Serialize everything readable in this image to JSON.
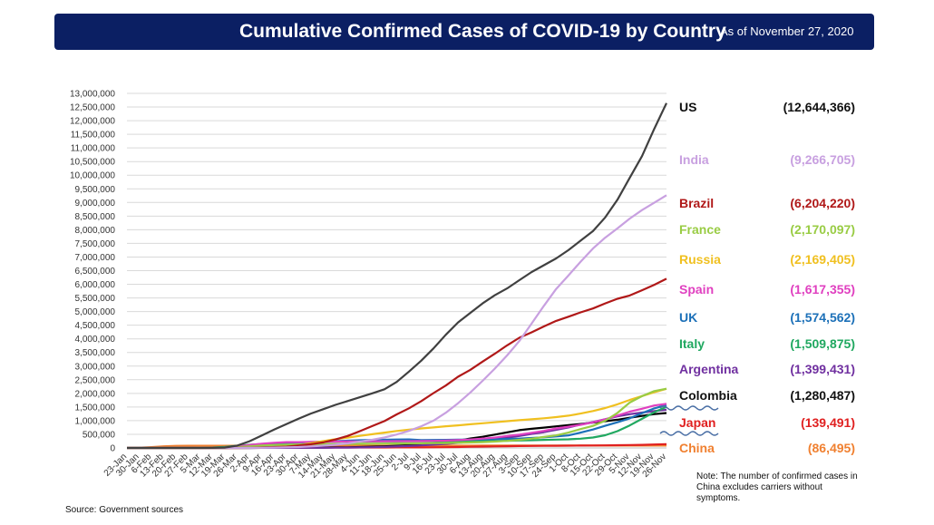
{
  "header": {
    "title": "Cumulative Confirmed Cases of COVID-19 by Country",
    "as_of": "As of November 27, 2020"
  },
  "note": "Note: The number of confirmed cases in China excludes carriers without symptoms.",
  "source": "Source: Government sources",
  "chart_data": {
    "type": "line",
    "title": "Cumulative Confirmed Cases of COVID-19 by Country",
    "ylim": [
      0,
      13000000
    ],
    "y_ticks": [
      0,
      500000,
      1000000,
      1500000,
      2000000,
      2500000,
      3000000,
      3500000,
      4000000,
      4500000,
      5000000,
      5500000,
      6000000,
      6500000,
      7000000,
      7500000,
      8000000,
      8500000,
      9000000,
      9500000,
      10000000,
      10500000,
      11000000,
      11500000,
      12000000,
      12500000,
      13000000
    ],
    "y_tick_labels": [
      "0",
      "500,000",
      "1,000,000",
      "1,500,000",
      "2,000,000",
      "2,500,000",
      "3,000,000",
      "3,500,000",
      "4,000,000",
      "4,500,000",
      "5,000,000",
      "5,500,000",
      "6,000,000",
      "6,500,000",
      "7,000,000",
      "7,500,000",
      "8,000,000",
      "8,500,000",
      "9,000,000",
      "9,500,000",
      "10,000,000",
      "10,500,000",
      "11,000,000",
      "11,500,000",
      "12,000,000",
      "12,500,000",
      "13,000,000"
    ],
    "categories": [
      "23-Jan",
      "30-Jan",
      "6-Feb",
      "13-Feb",
      "20-Feb",
      "27-Feb",
      "5-Mar",
      "12-Mar",
      "19-Mar",
      "26-Mar",
      "2-Apr",
      "9-Apr",
      "16-Apr",
      "23-Apr",
      "30-Apr",
      "7-May",
      "14-May",
      "21-May",
      "28-May",
      "4-Jun",
      "11-Jun",
      "18-Jun",
      "25-Jun",
      "2-Jul",
      "9-Jul",
      "16-Jul",
      "23-Jul",
      "30-Jul",
      "6-Aug",
      "13-Aug",
      "20-Aug",
      "27-Aug",
      "3-Sep",
      "10-Sep",
      "17-Sep",
      "24-Sep",
      "1-Oct",
      "8-Oct",
      "15-Oct",
      "22-Oct",
      "29-Oct",
      "5-Nov",
      "12-Nov",
      "19-Nov",
      "26-Nov"
    ],
    "grid": true,
    "legend": "right",
    "series": [
      {
        "name": "US",
        "value_label": "(12,644,366)",
        "color": "#404040",
        "values": [
          1,
          6,
          12,
          15,
          15,
          60,
          250,
          1700,
          14000,
          86000,
          245000,
          460000,
          670000,
          870000,
          1070000,
          1260000,
          1420000,
          1580000,
          1720000,
          1860000,
          2000000,
          2150000,
          2420000,
          2800000,
          3200000,
          3650000,
          4150000,
          4600000,
          4950000,
          5300000,
          5600000,
          5850000,
          6150000,
          6450000,
          6700000,
          6950000,
          7250000,
          7600000,
          7950000,
          8450000,
          9100000,
          9900000,
          10700000,
          11700000,
          12644366
        ]
      },
      {
        "name": "India",
        "value_label": "(9,266,705)",
        "color": "#c8a0e0",
        "values": [
          0,
          1,
          3,
          3,
          3,
          3,
          30,
          75,
          200,
          700,
          2500,
          6800,
          13000,
          23000,
          34000,
          56000,
          82000,
          118000,
          166000,
          236000,
          298000,
          381000,
          491000,
          626000,
          794000,
          1000000,
          1290000,
          1640000,
          2030000,
          2460000,
          2910000,
          3390000,
          3920000,
          4560000,
          5210000,
          5830000,
          6320000,
          6830000,
          7310000,
          7710000,
          8050000,
          8410000,
          8720000,
          8990000,
          9266705
        ]
      },
      {
        "name": "Brazil",
        "value_label": "(6,204,220)",
        "color": "#b01818",
        "values": [
          0,
          0,
          0,
          0,
          0,
          1,
          8,
          77,
          621,
          2900,
          8000,
          17000,
          30000,
          45000,
          85000,
          135000,
          202000,
          310000,
          438000,
          614000,
          802000,
          983000,
          1229000,
          1453000,
          1716000,
          2012000,
          2287000,
          2611000,
          2862000,
          3164000,
          3456000,
          3762000,
          4041000,
          4238000,
          4455000,
          4657000,
          4810000,
          4970000,
          5113000,
          5300000,
          5469000,
          5590000,
          5781000,
          5981000,
          6204220
        ]
      },
      {
        "name": "France",
        "value_label": "(2,170,097)",
        "color": "#99cc44",
        "values": [
          0,
          5,
          6,
          11,
          12,
          38,
          423,
          2876,
          10995,
          29155,
          59105,
          86334,
          106206,
          120804,
          128442,
          137150,
          140227,
          143845,
          145555,
          151753,
          155136,
          158174,
          162936,
          166960,
          170752,
          174674,
          180528,
          187919,
          197921,
          212211,
          232555,
          259698,
          295000,
          344000,
          401000,
          458000,
          563000,
          691000,
          809000,
          999000,
          1282000,
          1661000,
          1898000,
          2086000,
          2170097
        ]
      },
      {
        "name": "Russia",
        "value_label": "(2,169,405)",
        "color": "#f0c020",
        "values": [
          0,
          0,
          2,
          2,
          2,
          2,
          4,
          28,
          199,
          840,
          3548,
          10131,
          27938,
          62773,
          106498,
          177160,
          252245,
          317554,
          379051,
          441108,
          502436,
          560321,
          620794,
          667883,
          713936,
          752797,
          795038,
          828990,
          866627,
          902701,
          942106,
          980405,
          1017131,
          1051874,
          1086955,
          1128836,
          1185231,
          1260112,
          1354163,
          1463306,
          1599976,
          1760420,
          1902348,
          2039926,
          2169405
        ]
      },
      {
        "name": "Spain",
        "value_label": "(1,617,355)",
        "color": "#e040c0",
        "values": [
          0,
          0,
          1,
          2,
          2,
          25,
          282,
          3004,
          17147,
          56188,
          110238,
          153222,
          184948,
          213024,
          213435,
          221447,
          228691,
          233037,
          237906,
          240660,
          243209,
          245575,
          248770,
          250103,
          253056,
          258855,
          270166,
          285430,
          309855,
          342813,
          377906,
          439286,
          488513,
          554143,
          625651,
          716481,
          778607,
          848324,
          937311,
          1046132,
          1185678,
          1328832,
          1437220,
          1556730,
          1617355
        ]
      },
      {
        "name": "UK",
        "value_label": "(1,574,562)",
        "color": "#1c70b8",
        "values": [
          0,
          0,
          2,
          9,
          9,
          15,
          116,
          590,
          3269,
          11658,
          33718,
          65077,
          103093,
          138078,
          171253,
          206715,
          233151,
          250908,
          267240,
          281661,
          291409,
          300469,
          307980,
          313483,
          287621,
          293239,
          297146,
          302301,
          308134,
          313798,
          322280,
          330368,
          342351,
          365174,
          390358,
          423236,
          460178,
          561815,
          673622,
          810467,
          942275,
          1084000,
          1274000,
          1450000,
          1574562
        ]
      },
      {
        "name": "Italy",
        "value_label": "(1,509,875)",
        "color": "#20a860",
        "values": [
          0,
          0,
          2,
          3,
          3,
          650,
          3858,
          15113,
          41035,
          80539,
          115242,
          143626,
          168941,
          189973,
          205463,
          215858,
          223096,
          228006,
          231732,
          234013,
          235561,
          238159,
          240136,
          241419,
          242639,
          243736,
          245338,
          247158,
          248803,
          251713,
          256118,
          263949,
          272912,
          283180,
          294932,
          306235,
          317409,
          338398,
          381602,
          465726,
          616595,
          824879,
          1066401,
          1308528,
          1509875
        ]
      },
      {
        "name": "Argentina",
        "value_label": "(1,399,431)",
        "color": "#7030a0",
        "values": [
          0,
          0,
          0,
          0,
          0,
          0,
          1,
          31,
          128,
          502,
          1133,
          1894,
          2669,
          3288,
          4428,
          5776,
          7134,
          9283,
          13933,
          20197,
          27373,
          37510,
          52457,
          69941,
          94060,
          119301,
          148027,
          185373,
          228195,
          268574,
          320884,
          380292,
          439172,
          512293,
          577338,
          664799,
          751001,
          856369,
          949063,
          1053650,
          1157179,
          1236851,
          1296378,
          1349434,
          1399431
        ]
      },
      {
        "name": "Colombia",
        "value_label": "(1,280,487)",
        "color": "#000000",
        "values": [
          0,
          0,
          0,
          0,
          0,
          0,
          1,
          9,
          108,
          470,
          1161,
          2223,
          3233,
          4561,
          6507,
          9456,
          13610,
          18330,
          24141,
          33354,
          45212,
          60217,
          80599,
          106110,
          133973,
          165169,
          211038,
          267385,
          345714,
          410453,
          489122,
          572270,
          650055,
          702088,
          743945,
          790823,
          835339,
          877684,
          930159,
          981700,
          1033218,
          1108084,
          1174012,
          1240493,
          1280487
        ]
      },
      {
        "name": "Japan",
        "value_label": "(139,491)",
        "color": "#e02020",
        "values": [
          1,
          11,
          25,
          29,
          112,
          214,
          349,
          675,
          950,
          1387,
          2617,
          5548,
          9231,
          12360,
          14119,
          15575,
          16203,
          16513,
          16651,
          17000,
          17292,
          17740,
          18297,
          19068,
          20763,
          23473,
          28196,
          34372,
          42263,
          49668,
          57934,
          63822,
          68392,
          72726,
          76893,
          80258,
          83010,
          86047,
          88912,
          92656,
          98120,
          105914,
          114591,
          127089,
          139491
        ]
      },
      {
        "name": "China",
        "value_label": "(86,495)",
        "color": "#f08030",
        "values": [
          571,
          9692,
          31161,
          59804,
          75077,
          78824,
          80537,
          80932,
          81174,
          81497,
          81638,
          81907,
          82692,
          82798,
          82862,
          82886,
          82929,
          82971,
          82995,
          83022,
          83064,
          83325,
          83483,
          83553,
          83581,
          83622,
          83729,
          84337,
          84565,
          84786,
          84895,
          85013,
          85112,
          85174,
          85255,
          85322,
          85414,
          85530,
          85646,
          85790,
          86024,
          86180,
          86346,
          86442,
          86495
        ]
      }
    ]
  }
}
